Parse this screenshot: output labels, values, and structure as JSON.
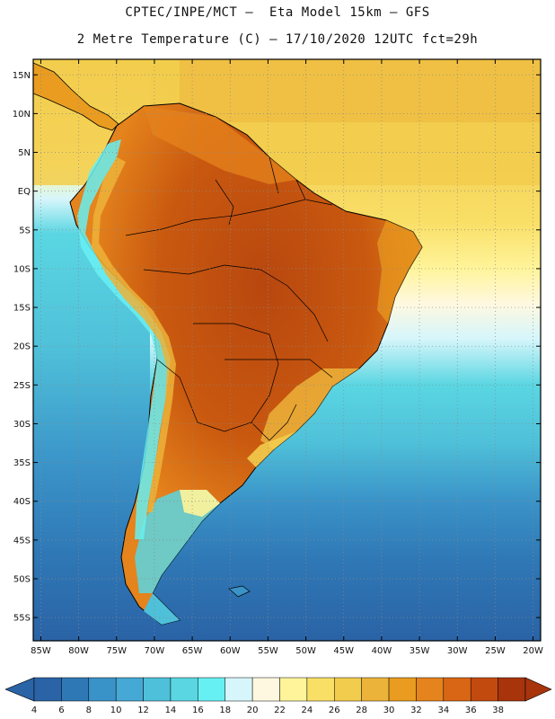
{
  "header": {
    "line1": "CPTEC/INPE/MCT –  Eta Model 15km – GFS",
    "line2": "2 Metre Temperature (C) – 17/10/2020 12UTC fct=29h"
  },
  "map": {
    "lat_labels": [
      "15N",
      "10N",
      "5N",
      "EQ",
      "5S",
      "10S",
      "15S",
      "20S",
      "25S",
      "30S",
      "35S",
      "40S",
      "45S",
      "50S",
      "55S"
    ],
    "lon_labels": [
      "85W",
      "80W",
      "75W",
      "70W",
      "65W",
      "60W",
      "55W",
      "50W",
      "45W",
      "40W",
      "35W",
      "30W",
      "25W",
      "20W"
    ],
    "lat_range": [
      17,
      -58
    ],
    "lon_range": [
      -86,
      -19
    ]
  },
  "legend": {
    "labels": [
      "4",
      "6",
      "8",
      "10",
      "12",
      "14",
      "16",
      "18",
      "20",
      "22",
      "24",
      "26",
      "28",
      "30",
      "32",
      "34",
      "36",
      "38"
    ],
    "colors": [
      "#2a63a6",
      "#2f78b6",
      "#3a93c8",
      "#46a8d4",
      "#4fc0d9",
      "#5ad6e2",
      "#67f0f3",
      "#d6f6fb",
      "#fff8e0",
      "#fff49a",
      "#f9df66",
      "#f2cc4c",
      "#ecb33a",
      "#e99c1f",
      "#e5831c",
      "#d96614",
      "#c24a0f",
      "#a8340b"
    ]
  },
  "colors": {
    "ocean_deep": "#2a63a6",
    "ocean_mid": "#3a93c8",
    "ocean_light": "#5ad6e2",
    "tropical_ocean": "#f2cc4c",
    "land_hot": "#c24a0f",
    "land_warm": "#e5831c",
    "land_mild": "#ecb33a",
    "andes_cool": "#67f0f3"
  }
}
